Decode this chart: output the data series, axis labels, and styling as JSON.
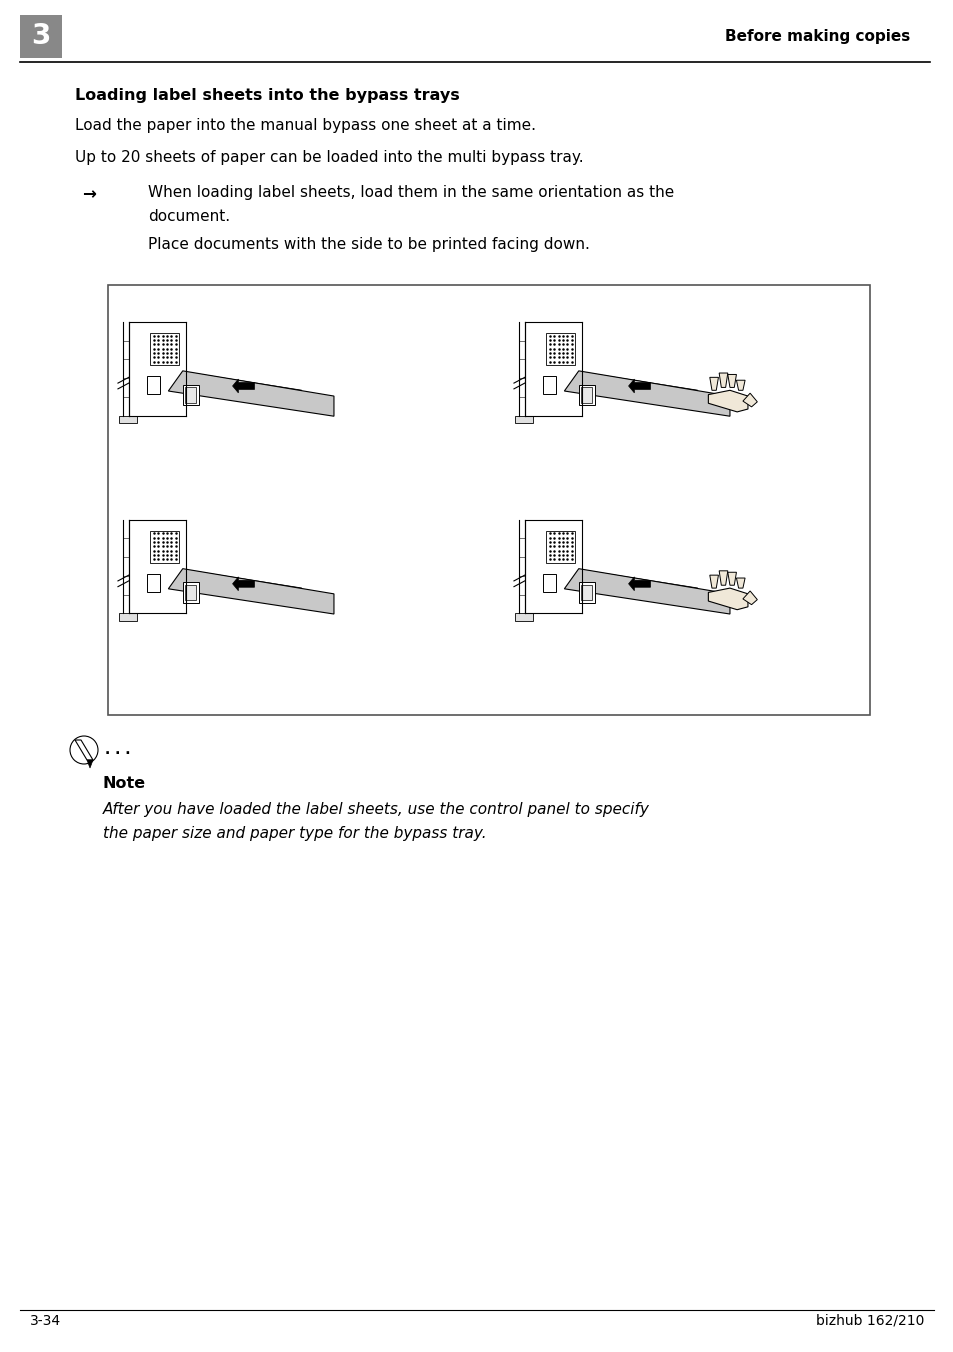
{
  "page_bg": "#ffffff",
  "header_chapter_num": "3",
  "header_chapter_num_bg": "#888888",
  "header_title": "Before making copies",
  "header_line_color": "#000000",
  "footer_left": "3-34",
  "footer_right": "bizhub 162/210",
  "footer_line_color": "#000000",
  "section_title": "Loading label sheets into the bypass trays",
  "body_line1": "Load the paper into the manual bypass one sheet at a time.",
  "body_line2": "Up to 20 sheets of paper can be loaded into the multi bypass tray.",
  "arrow_bullet": "→",
  "bullet_line1": "When loading label sheets, load them in the same orientation as the",
  "bullet_line2": "document.",
  "bullet_line3": "Place documents with the side to be printed facing down.",
  "note_title": "Note",
  "note_text_line1": "After you have loaded the label sheets, use the control panel to specify",
  "note_text_line2": "the paper size and paper type for the bypass tray.",
  "paper_gray": "#c8c8c8",
  "line_black": "#000000",
  "white": "#ffffff"
}
